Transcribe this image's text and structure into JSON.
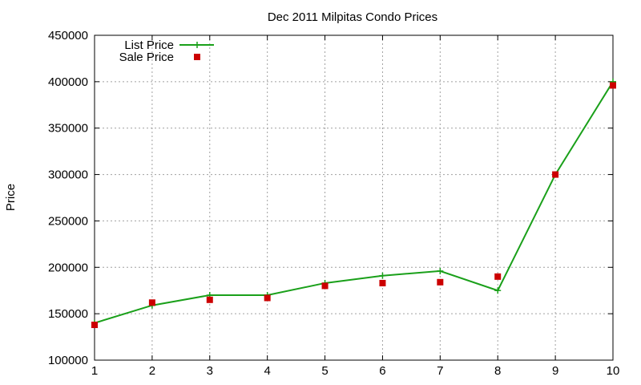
{
  "chart_data": {
    "type": "line",
    "title": "Dec 2011 Milpitas Condo Prices",
    "xlabel": "",
    "ylabel": "Price",
    "x": [
      1,
      2,
      3,
      4,
      5,
      6,
      7,
      8,
      9,
      10
    ],
    "xlim": [
      1,
      10
    ],
    "ylim": [
      100000,
      450000
    ],
    "xticks": [
      "1",
      "2",
      "3",
      "4",
      "5",
      "6",
      "7",
      "8",
      "9",
      "10"
    ],
    "yticks": [
      "100000",
      "150000",
      "200000",
      "250000",
      "300000",
      "350000",
      "400000",
      "450000"
    ],
    "grid": true,
    "legend_position": "top-left",
    "series": [
      {
        "name": "List Price",
        "style": "line-with-plus-markers",
        "color": "#1aa01a",
        "values": [
          140000,
          159000,
          170000,
          170000,
          183000,
          191000,
          196000,
          175000,
          300000,
          400000
        ]
      },
      {
        "name": "Sale Price",
        "style": "square-points",
        "color": "#cc0000",
        "values": [
          138000,
          162000,
          165000,
          167000,
          180000,
          183000,
          184000,
          190000,
          300000,
          396000
        ]
      }
    ]
  }
}
